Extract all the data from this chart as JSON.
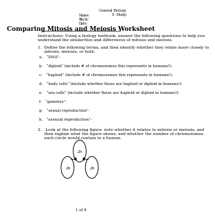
{
  "top_right_text": "General Biology\nS. Sharp",
  "header_fields": "Name:\nBlock:\nDate:",
  "title": "Comparing Mitosis and Meiosis Worksheet",
  "instructions": "Instructions: Using a biology textbook, answer the following questions to help you\nunderstand the similarities and differences of mitosis and meiosis.",
  "question1_header": "1.  Define the following terms, and then identify whether they relate more closely to\n     mitosis, meiosis, or both.",
  "items": [
    "a.   “DNA”-",
    "b.   “diploid” (include # of chromosomes this represents in humans!)-",
    "c.   “haploid” (include # of chromosomes this represents in humans!)-",
    "d.   “body cells” (include whether these are haploid or diploid in humans!)-",
    "e.   “sex cells” (include whether these are haploid or diploid in humans!)-",
    "f.   “gametes”-",
    "g.   “sexual reproduction”-",
    "h.   “asexual reproduction”-"
  ],
  "question2_header": "2.   Look at the following figure, note whether it relates to mitosis or meiosis, and\n     then explain what the figure shows, and whether the number of chromosomes\n     each circle would contain in a human.",
  "circle_labels": [
    "2n",
    "2n",
    "2n"
  ],
  "footer": "1 of 8",
  "bg_color": "#ffffff",
  "text_color": "#000000",
  "font_size_title": 6.5,
  "font_size_body": 4.2,
  "font_size_small": 3.8,
  "font_size_footer": 4.0
}
